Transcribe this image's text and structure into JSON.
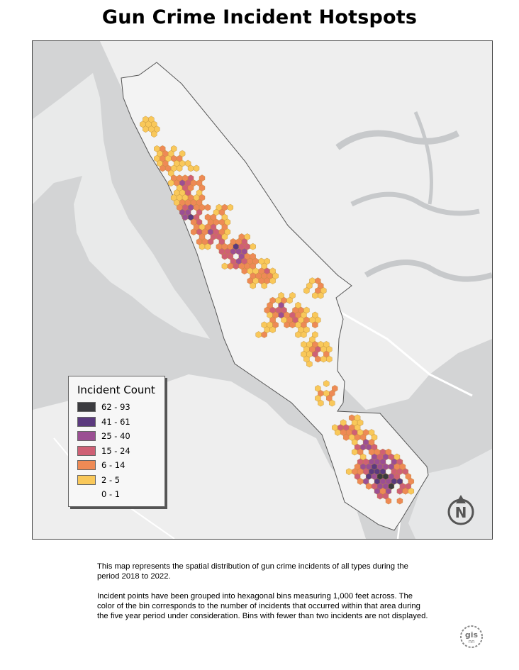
{
  "title": "Gun Crime Incident Hotspots",
  "legend": {
    "title": "Incident Count",
    "items": [
      {
        "label": "62 - 93",
        "color": "#3b3b3f"
      },
      {
        "label": "41 - 61",
        "color": "#5b3a7e"
      },
      {
        "label": "25 - 40",
        "color": "#9b4f93"
      },
      {
        "label": "15 - 24",
        "color": "#cf6075"
      },
      {
        "label": "6 - 14",
        "color": "#ee8a55"
      },
      {
        "label": "2 - 5",
        "color": "#f9c85a"
      },
      {
        "label": "0 - 1",
        "color": "none"
      }
    ]
  },
  "north_arrow": {
    "label": "N",
    "icon": "north-arrow-icon"
  },
  "description": {
    "paragraph1": "This map represents the spatial distribution of gun crime incidents of all types during the period 2018 to 2022.",
    "paragraph2": "Incident points have been grouped into hexagonal bins measuring 1,000 feet across. The color of the bin corresponds to the number of incidents that occurred within that area during the five year period under consideration. Bins with  fewer than two incidents are not displayed."
  },
  "logo": {
    "line1": "gis",
    "line2": "nn",
    "icon": "gis-logo-icon"
  },
  "colors": {
    "water": "#d3d4d5",
    "land": "#eeeeee",
    "city": "#f2f2f2",
    "outline": "#555555"
  }
}
